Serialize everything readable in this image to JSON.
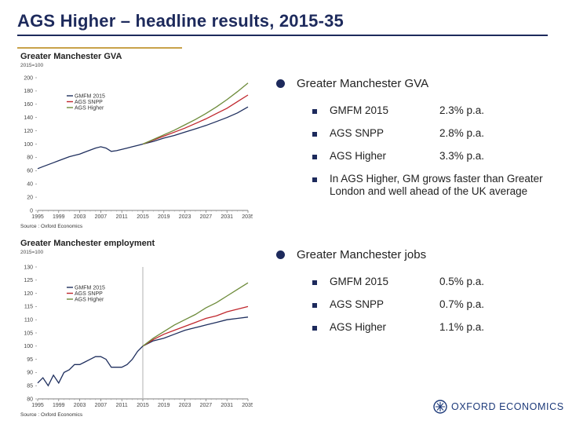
{
  "page": {
    "title": "AGS Higher – headline results, 2015-35"
  },
  "chart_data": [
    {
      "type": "line",
      "title": "Greater Manchester GVA",
      "subtitle": "2015=100",
      "source": "Source : Oxford Economics",
      "ylim": [
        0,
        200
      ],
      "yticks": [
        0,
        20,
        40,
        60,
        80,
        100,
        120,
        140,
        160,
        180,
        200
      ],
      "xlim": [
        1995,
        2035
      ],
      "xticks": [
        1995,
        1999,
        2003,
        2007,
        2011,
        2015,
        2019,
        2023,
        2027,
        2031,
        2035
      ],
      "legend": "top-left",
      "series": [
        {
          "name": "GMFM 2015",
          "color": "#1f2f5e",
          "x": [
            1995,
            1996,
            1997,
            1998,
            1999,
            2000,
            2001,
            2002,
            2003,
            2004,
            2005,
            2006,
            2007,
            2008,
            2009,
            2010,
            2011,
            2012,
            2013,
            2014,
            2015,
            2017,
            2019,
            2021,
            2023,
            2025,
            2027,
            2029,
            2031,
            2033,
            2035
          ],
          "y": [
            63,
            66,
            69,
            72,
            75,
            78,
            81,
            83,
            85,
            88,
            91,
            94,
            96,
            94,
            89,
            90,
            92,
            94,
            96,
            98,
            100,
            104,
            109,
            113,
            118,
            123,
            128,
            134,
            140,
            147,
            156
          ]
        },
        {
          "name": "AGS SNPP",
          "color": "#c0272d",
          "x": [
            2015,
            2017,
            2019,
            2021,
            2023,
            2025,
            2027,
            2029,
            2031,
            2033,
            2035
          ],
          "y": [
            100,
            106,
            112,
            118,
            124,
            131,
            138,
            146,
            154,
            164,
            174
          ]
        },
        {
          "name": "AGS Higher",
          "color": "#6d8b3a",
          "x": [
            2015,
            2017,
            2019,
            2021,
            2023,
            2025,
            2027,
            2029,
            2031,
            2033,
            2035
          ],
          "y": [
            100,
            107,
            114,
            121,
            129,
            137,
            146,
            156,
            167,
            179,
            192
          ]
        }
      ]
    },
    {
      "type": "line",
      "title": "Greater Manchester employment",
      "subtitle": "2015=100",
      "source": "Source : Oxford Economics",
      "ylim": [
        80,
        130
      ],
      "yticks": [
        80,
        85,
        90,
        95,
        100,
        105,
        110,
        115,
        120,
        125,
        130
      ],
      "xlim": [
        1995,
        2035
      ],
      "xticks": [
        1995,
        1999,
        2003,
        2007,
        2011,
        2015,
        2019,
        2023,
        2027,
        2031,
        2035
      ],
      "legend": "top-left",
      "series": [
        {
          "name": "GMFM 2015",
          "color": "#1f2f5e",
          "x": [
            1995,
            1996,
            1997,
            1998,
            1999,
            2000,
            2001,
            2002,
            2003,
            2004,
            2005,
            2006,
            2007,
            2008,
            2009,
            2010,
            2011,
            2012,
            2013,
            2014,
            2015,
            2017,
            2019,
            2021,
            2023,
            2025,
            2027,
            2029,
            2031,
            2033,
            2035
          ],
          "y": [
            86,
            88,
            85,
            89,
            86,
            90,
            91,
            93,
            93,
            94,
            95,
            96,
            96,
            95,
            92,
            92,
            92,
            93,
            95,
            98,
            100,
            102,
            103,
            104.5,
            106,
            107,
            108,
            109,
            110,
            110.5,
            111
          ]
        },
        {
          "name": "AGS SNPP",
          "color": "#c0272d",
          "x": [
            2015,
            2017,
            2019,
            2021,
            2023,
            2025,
            2027,
            2029,
            2031,
            2033,
            2035
          ],
          "y": [
            100,
            102.5,
            104.5,
            106,
            107.5,
            109,
            110.5,
            111.5,
            113,
            114,
            115
          ]
        },
        {
          "name": "AGS Higher",
          "color": "#6d8b3a",
          "x": [
            2015,
            2017,
            2019,
            2021,
            2023,
            2025,
            2027,
            2029,
            2031,
            2033,
            2035
          ],
          "y": [
            100,
            103,
            105.5,
            108,
            110,
            112,
            114.5,
            116.5,
            119,
            121.5,
            124
          ]
        }
      ]
    }
  ],
  "gva_section": {
    "heading": "Greater Manchester GVA",
    "rows": [
      {
        "name": "GMFM 2015",
        "rate": "2.3% p.a."
      },
      {
        "name": "AGS SNPP",
        "rate": "2.8% p.a."
      },
      {
        "name": "AGS Higher",
        "rate": "3.3% p.a."
      }
    ],
    "note": "In AGS Higher, GM grows faster than Greater London and well ahead of the UK average"
  },
  "jobs_section": {
    "heading": "Greater Manchester jobs",
    "rows": [
      {
        "name": "GMFM 2015",
        "rate": "0.5% p.a."
      },
      {
        "name": "AGS SNPP",
        "rate": "0.7% p.a."
      },
      {
        "name": "AGS Higher",
        "rate": "1.1% p.a."
      }
    ]
  },
  "logo": {
    "text": "OXFORD ECONOMICS",
    "color": "#1d3a7a"
  }
}
